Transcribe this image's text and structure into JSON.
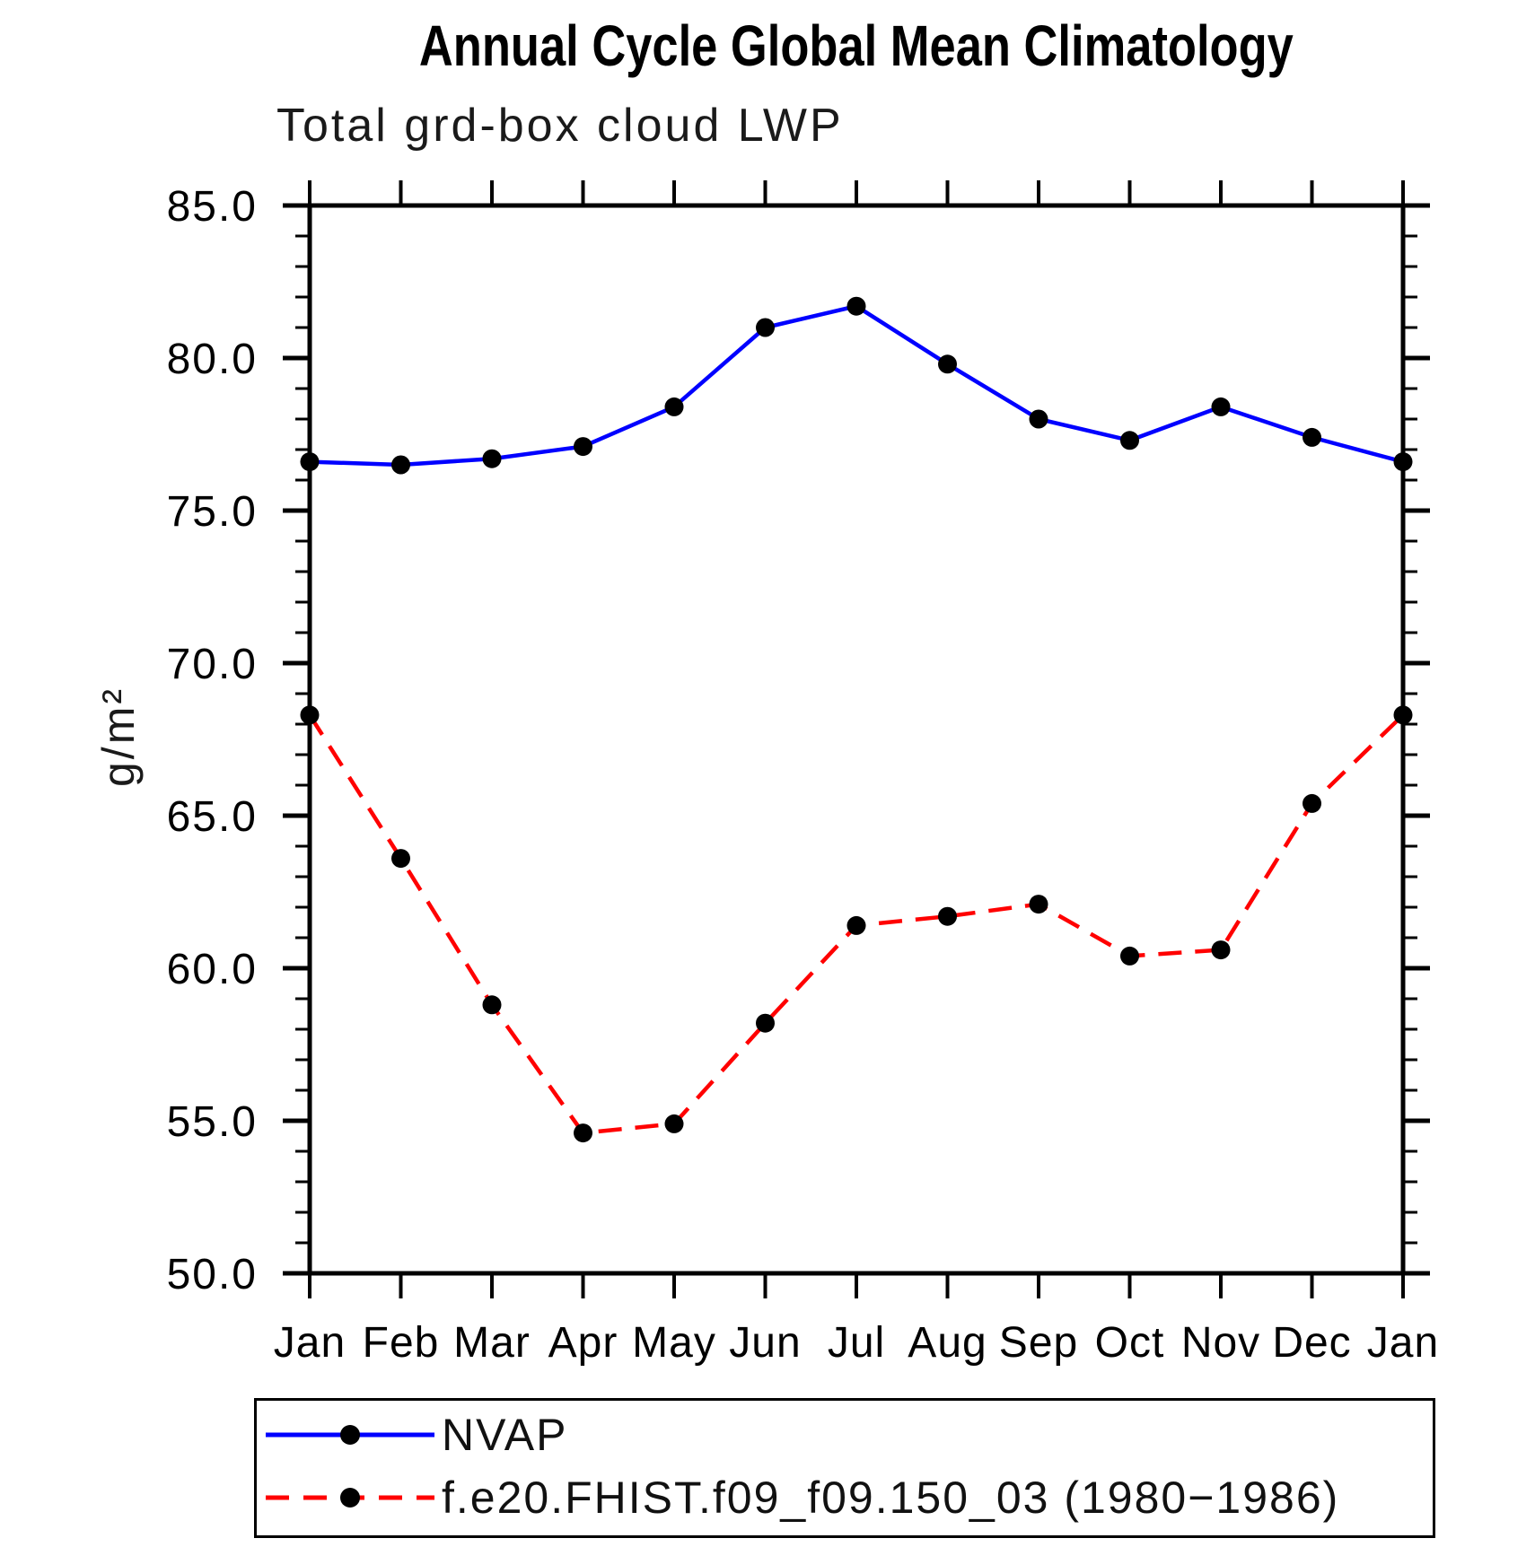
{
  "chart_data": {
    "type": "line",
    "title": "Annual Cycle Global Mean Climatology",
    "subtitle": "Total grd-box cloud LWP",
    "ylabel": "g/m²",
    "xlabel": "",
    "x_tick_labels": [
      "Jan",
      "Feb",
      "Mar",
      "Apr",
      "May",
      "Jun",
      "Jul",
      "Aug",
      "Sep",
      "Oct",
      "Nov",
      "Dec",
      "Jan"
    ],
    "ylim": [
      50,
      85
    ],
    "y_ticks": [
      85,
      80,
      75,
      70,
      65,
      60,
      55,
      50
    ],
    "y_tick_labels": [
      "85.0",
      "80.0",
      "75.0",
      "70.0",
      "65.0",
      "60.0",
      "55.0",
      "50.0"
    ],
    "y_minor_step": 1,
    "grid": false,
    "legend_position": "bottom-left",
    "axis_color": "#000000",
    "background": "#ffffff",
    "series": [
      {
        "name": "NVAP",
        "color": "#0000ff",
        "line_style": "solid",
        "marker": "filled-circle",
        "marker_color": "#000000",
        "values": [
          76.6,
          76.5,
          76.7,
          77.1,
          78.4,
          81.0,
          81.7,
          79.8,
          78.0,
          77.3,
          78.4,
          77.4,
          76.6
        ]
      },
      {
        "name": "f.e20.FHIST.f09_f09.150_03 (1980−1986)",
        "color": "#ff0000",
        "line_style": "dashed",
        "marker": "filled-circle",
        "marker_color": "#000000",
        "values": [
          68.3,
          63.6,
          58.8,
          54.6,
          54.9,
          58.2,
          61.4,
          61.7,
          62.1,
          60.4,
          60.6,
          65.4,
          68.3
        ]
      }
    ]
  }
}
